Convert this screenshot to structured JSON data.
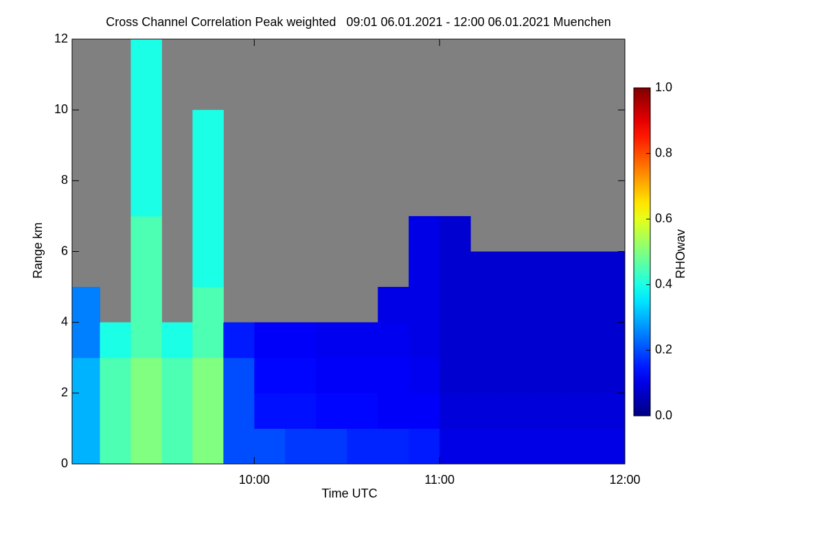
{
  "chart_data": {
    "type": "heatmap",
    "title": "Cross Channel Correlation Peak weighted   09:01 06.01.2021 - 12:00 06.01.2021 Muenchen",
    "x_label": "Time UTC",
    "y_label": "Range km",
    "colorbar_label": "RHOwav",
    "colormap": "jet",
    "missing_color": "#808080",
    "x": [
      9.0167,
      9.1667,
      9.3333,
      9.5,
      9.6667,
      9.8333,
      10,
      10.1667,
      10.3333,
      10.5,
      10.6667,
      10.8333,
      11,
      11.1667,
      11.3333,
      11.5,
      11.6667,
      11.8333
    ],
    "y": [
      0,
      1,
      2,
      3,
      4,
      5,
      6,
      7,
      8,
      9,
      10,
      11
    ],
    "z": [
      [
        0.3,
        0.45,
        0.5,
        0.45,
        0.5,
        0.2,
        0.2,
        0.18,
        0.18,
        0.16,
        0.16,
        0.15,
        0.1,
        0.1,
        0.1,
        0.1,
        0.1,
        0.1
      ],
      [
        0.3,
        0.45,
        0.5,
        0.45,
        0.5,
        0.2,
        0.14,
        0.14,
        0.13,
        0.13,
        0.12,
        0.12,
        0.09,
        0.09,
        0.09,
        0.09,
        0.09,
        0.09
      ],
      [
        0.3,
        0.45,
        0.5,
        0.45,
        0.5,
        0.2,
        0.13,
        0.13,
        0.12,
        0.12,
        0.12,
        0.11,
        0.08,
        0.08,
        0.08,
        0.08,
        0.08,
        0.08
      ],
      [
        0.25,
        0.4,
        0.45,
        0.4,
        0.45,
        0.15,
        0.12,
        0.12,
        0.11,
        0.11,
        0.11,
        0.1,
        0.08,
        0.08,
        0.08,
        0.08,
        0.08,
        0.08
      ],
      [
        0.25,
        null,
        0.45,
        null,
        0.45,
        null,
        null,
        null,
        null,
        null,
        0.1,
        0.1,
        0.08,
        0.08,
        0.08,
        0.08,
        0.08,
        0.08
      ],
      [
        null,
        null,
        0.45,
        null,
        0.4,
        null,
        null,
        null,
        null,
        null,
        null,
        0.1,
        0.08,
        0.08,
        0.08,
        0.08,
        0.08,
        0.08
      ],
      [
        null,
        null,
        0.45,
        null,
        0.4,
        null,
        null,
        null,
        null,
        null,
        null,
        0.1,
        0.08,
        null,
        null,
        null,
        null,
        null
      ],
      [
        null,
        null,
        0.4,
        null,
        0.4,
        null,
        null,
        null,
        null,
        null,
        null,
        null,
        null,
        null,
        null,
        null,
        null,
        null
      ],
      [
        null,
        null,
        0.4,
        null,
        0.4,
        null,
        null,
        null,
        null,
        null,
        null,
        null,
        null,
        null,
        null,
        null,
        null,
        null
      ],
      [
        null,
        null,
        0.4,
        null,
        0.4,
        null,
        null,
        null,
        null,
        null,
        null,
        null,
        null,
        null,
        null,
        null,
        null,
        null
      ],
      [
        null,
        null,
        0.4,
        null,
        null,
        null,
        null,
        null,
        null,
        null,
        null,
        null,
        null,
        null,
        null,
        null,
        null,
        null
      ],
      [
        null,
        null,
        0.4,
        null,
        null,
        null,
        null,
        null,
        null,
        null,
        null,
        null,
        null,
        null,
        null,
        null,
        null,
        null
      ]
    ],
    "xlim": [
      9.0167,
      12.0
    ],
    "xticks": [
      {
        "value": 10,
        "label": "10:00"
      },
      {
        "value": 11,
        "label": "11:00"
      },
      {
        "value": 12,
        "label": "12:00"
      }
    ],
    "ylim": [
      0,
      12
    ],
    "yticks": [
      0,
      2,
      4,
      6,
      8,
      10,
      12
    ],
    "zlim": [
      0,
      1
    ],
    "zticks": [
      {
        "value": 0,
        "label": "0.0"
      },
      {
        "value": 0.2,
        "label": "0.2"
      },
      {
        "value": 0.4,
        "label": "0.4"
      },
      {
        "value": 0.6,
        "label": "0.6"
      },
      {
        "value": 0.8,
        "label": "0.8"
      },
      {
        "value": 1,
        "label": "1.0"
      }
    ]
  }
}
